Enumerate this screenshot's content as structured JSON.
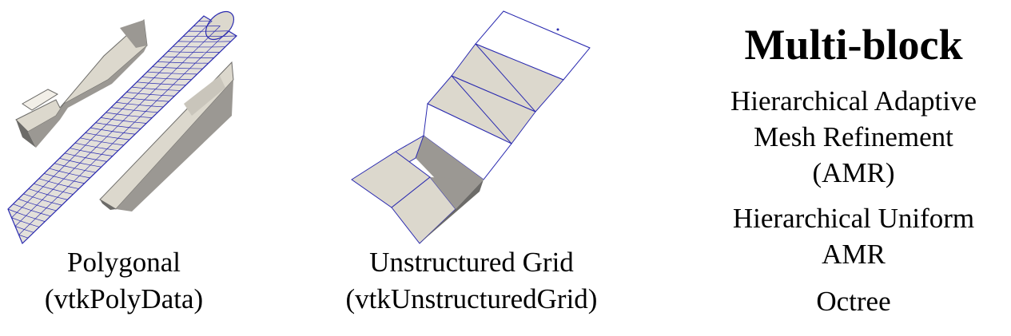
{
  "figures": [
    {
      "caption_line1": "Polygonal",
      "caption_line2": "(vtkPolyData)"
    },
    {
      "caption_line1": "Unstructured Grid",
      "caption_line2": "(vtkUnstructuredGrid)"
    }
  ],
  "multiblock": {
    "title": "Multi-block",
    "items": [
      {
        "lines": [
          "Hierarchical Adaptive",
          "Mesh Refinement",
          "(AMR)"
        ]
      },
      {
        "lines": [
          "Hierarchical Uniform",
          "AMR"
        ]
      },
      {
        "lines": [
          "Octree"
        ]
      }
    ]
  },
  "colors": {
    "surface": "#dcd8cd",
    "shade": "#9b9893",
    "dark": "#6c6b68",
    "edge": "#2b2bb0",
    "text": "#000000"
  }
}
